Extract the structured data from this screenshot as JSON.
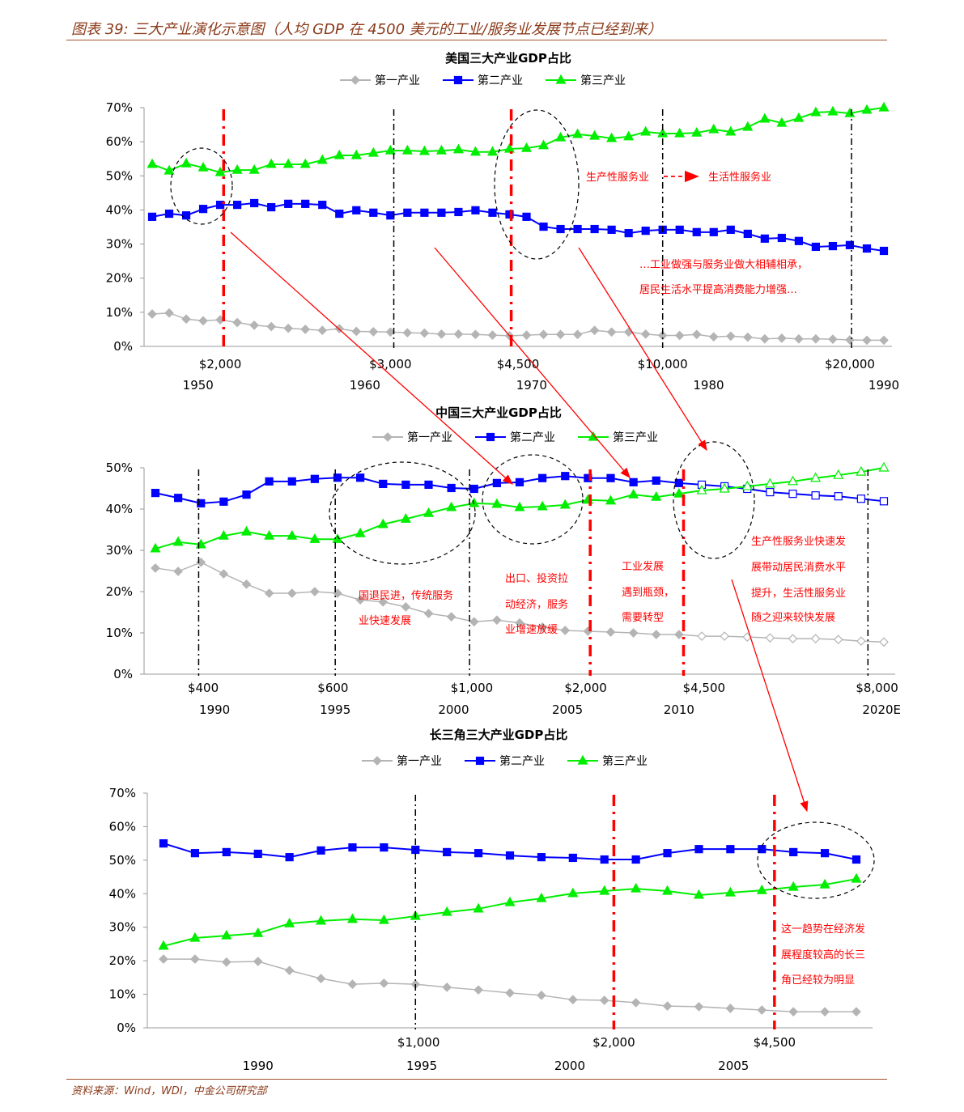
{
  "header": {
    "title": "图表 39: 三大产业演化示意图（人均 GDP 在 4500 美元的工业/服务业发展节点已经到来）"
  },
  "footer": {
    "source": "资料来源：Wind，WDI，中金公司研究部"
  },
  "legend": [
    "第一产业",
    "第二产业",
    "第三产业"
  ],
  "colors": {
    "primary": "#b4b4b4",
    "secondary": "#0000ff",
    "tertiary": "#00ee00",
    "annotation": "#ff0000"
  },
  "chart_data": [
    {
      "type": "line",
      "title": "美国三大产业GDP占比",
      "x_start": 1947,
      "x_end": 1990,
      "ylim": [
        0,
        70
      ],
      "yticks": [
        0,
        10,
        20,
        30,
        40,
        50,
        60,
        70
      ],
      "series": [
        {
          "name": "第一产业",
          "values": [
            9.5,
            9.8,
            8,
            7.5,
            7.8,
            7,
            6.2,
            5.8,
            5.3,
            5,
            4.7,
            5.2,
            4.4,
            4.3,
            4.2,
            4,
            3.9,
            3.6,
            3.6,
            3.5,
            3.3,
            3.1,
            3.3,
            3.5,
            3.5,
            3.5,
            4.7,
            4.2,
            4.2,
            3.6,
            3.2,
            3.2,
            3.5,
            2.8,
            3,
            2.7,
            2.2,
            2.4,
            2.2,
            2.2,
            2.1,
            1.9,
            1.8,
            1.8
          ]
        },
        {
          "name": "第二产业",
          "values": [
            38.0,
            38.9,
            38.4,
            40.3,
            41.5,
            41.5,
            42.0,
            40.8,
            41.8,
            41.8,
            41.5,
            38.9,
            39.9,
            39.2,
            38.4,
            39.2,
            39.2,
            39.2,
            39.4,
            39.9,
            39.2,
            38.7,
            38.0,
            35.1,
            34.4,
            34.4,
            34.4,
            34.2,
            33.2,
            33.9,
            34.2,
            34.2,
            33.5,
            33.5,
            34.2,
            33.0,
            31.6,
            31.8,
            30.9,
            29.2,
            29.4,
            29.7,
            28.7,
            28.0
          ]
        },
        {
          "name": "第三产业",
          "values": [
            53.4,
            51.5,
            53.6,
            52.4,
            51,
            51.7,
            51.7,
            53.4,
            53.4,
            53.4,
            54.6,
            56,
            56,
            56.7,
            57.4,
            57.4,
            57.2,
            57.4,
            57.7,
            57,
            57,
            57.9,
            58.1,
            58.9,
            61.2,
            62.2,
            61.7,
            61,
            61.5,
            62.9,
            62.4,
            62.4,
            62.6,
            63.6,
            62.9,
            64.3,
            66.7,
            65.5,
            66.9,
            68.6,
            68.8,
            68.3,
            69.3,
            70
          ]
        }
      ],
      "gdp_labels": [
        {
          "label": "$2,000",
          "x": 1951
        },
        {
          "label": "$3,000",
          "x": 1961
        },
        {
          "label": "$4,500",
          "x": 1968.5
        },
        {
          "label": "$10,000",
          "x": 1977
        },
        {
          "label": "$20,000",
          "x": 1988
        }
      ],
      "year_labels": [
        {
          "label": "1950",
          "x": 1949.7
        },
        {
          "label": "1960",
          "x": 1959.5
        },
        {
          "label": "1970",
          "x": 1969.3
        },
        {
          "label": "1980",
          "x": 1979.7
        },
        {
          "label": "1990",
          "x": 1990
        }
      ],
      "markers": [
        {
          "x": 1951.2,
          "style": "red"
        },
        {
          "x": 1961.2,
          "style": "black"
        },
        {
          "x": 1968.1,
          "style": "red"
        },
        {
          "x": 1977,
          "style": "black"
        },
        {
          "x": 1988.1,
          "style": "black"
        }
      ],
      "annotations": [
        "生产性服务业",
        "生活性服务业",
        "…工业做强与服务业做大相辅相承，",
        "居民生活水平提高消费能力增强…"
      ]
    },
    {
      "type": "line",
      "title": "中国三大产业GDP占比",
      "x_start": 1988,
      "x_end": 2020,
      "projection_from": 2012,
      "ylim": [
        0,
        50
      ],
      "yticks": [
        0,
        10,
        20,
        30,
        40,
        50
      ],
      "series": [
        {
          "name": "第一产业",
          "values": [
            25.7,
            24.9,
            27.1,
            24.3,
            21.8,
            19.6,
            19.6,
            20,
            19.6,
            18,
            17.5,
            16.3,
            14.7,
            13.9,
            12.7,
            13.1,
            12.4,
            11.4,
            10.6,
            10.4,
            10.2,
            10,
            9.6,
            9.6,
            9.2,
            9.2,
            9,
            8.8,
            8.6,
            8.6,
            8.4,
            8,
            7.8
          ]
        },
        {
          "name": "第二产业",
          "values": [
            43.9,
            42.7,
            41.4,
            41.8,
            43.5,
            46.7,
            46.7,
            47.3,
            47.6,
            47.6,
            46.1,
            45.9,
            45.9,
            45.1,
            44.9,
            46.3,
            46.5,
            47.5,
            48.0,
            47.5,
            47.5,
            46.5,
            46.9,
            46.3,
            45.9,
            45.5,
            44.9,
            44.1,
            43.7,
            43.3,
            43.1,
            42.5,
            41.9
          ]
        },
        {
          "name": "第三产业",
          "values": [
            30.4,
            32,
            31.4,
            33.5,
            34.5,
            33.5,
            33.5,
            32.7,
            32.7,
            34.1,
            36.3,
            37.6,
            39,
            40.4,
            41.4,
            41.2,
            40.4,
            40.6,
            41,
            42.2,
            42,
            43.5,
            42.9,
            43.7,
            44.5,
            44.9,
            45.5,
            46.1,
            46.7,
            47.5,
            48.2,
            49,
            50
          ]
        }
      ],
      "gdp_labels": [
        {
          "label": "$400",
          "x": 1990.1
        },
        {
          "label": "$600",
          "x": 1995.8
        },
        {
          "label": "$1,000",
          "x": 2001.9
        },
        {
          "label": "$2,000",
          "x": 2006.9
        },
        {
          "label": "$4,500",
          "x": 2012.1
        },
        {
          "label": "$8,000",
          "x": 2019.7
        }
      ],
      "year_labels": [
        {
          "label": "1990",
          "x": 1990.6
        },
        {
          "label": "1995",
          "x": 1995.9
        },
        {
          "label": "2000",
          "x": 2001.1
        },
        {
          "label": "2005",
          "x": 2006.1
        },
        {
          "label": "2010",
          "x": 2011
        },
        {
          "label": "2020E",
          "x": 2019.9
        }
      ],
      "markers": [
        {
          "x": 1989.9,
          "style": "black"
        },
        {
          "x": 1995.9,
          "style": "black"
        },
        {
          "x": 2001.8,
          "style": "black"
        },
        {
          "x": 2007.1,
          "style": "red"
        },
        {
          "x": 2011.2,
          "style": "red"
        },
        {
          "x": 2019.3,
          "style": "black"
        }
      ],
      "annotations": [
        "国退民进，传统服务",
        "业快速发展",
        "出口、投资拉",
        "动经济，服务",
        "业增速放缓",
        "工业发展",
        "遇到瓶颈，",
        "需要转型",
        "生产性服务业快速发",
        "展带动居民消费水平",
        "提升，生活性服务业",
        "随之迎来较快发展"
      ]
    },
    {
      "type": "line",
      "title": "长三角三大产业GDP占比",
      "x_start": 1987,
      "x_end": 2009,
      "ylim": [
        0,
        70
      ],
      "yticks": [
        0,
        10,
        20,
        30,
        40,
        50,
        60,
        70
      ],
      "series": [
        {
          "name": "第一产业",
          "values": [
            20.5,
            20.5,
            19.6,
            19.8,
            17.1,
            14.7,
            13,
            13.3,
            13,
            12.1,
            11.3,
            10.4,
            9.7,
            8.4,
            8.2,
            7.5,
            6.5,
            6.3,
            5.8,
            5.3,
            4.8,
            4.8,
            4.8
          ]
        },
        {
          "name": "第二产业",
          "values": [
            55,
            52.1,
            52.4,
            51.9,
            50.9,
            52.9,
            53.8,
            53.8,
            53.1,
            52.4,
            52.1,
            51.4,
            50.9,
            50.7,
            50.2,
            50.2,
            52.1,
            53.3,
            53.3,
            53.3,
            52.4,
            52.1,
            50.2
          ]
        },
        {
          "name": "第三产业",
          "values": [
            24.4,
            26.8,
            27.5,
            28.2,
            31.1,
            31.9,
            32.4,
            32.1,
            33.3,
            34.5,
            35.5,
            37.4,
            38.6,
            40.1,
            40.8,
            41.5,
            40.8,
            39.6,
            40.3,
            41,
            42,
            42.7,
            44.4
          ]
        }
      ],
      "gdp_labels": [
        {
          "label": "$1,000",
          "x": 1995.1
        },
        {
          "label": "$2,000",
          "x": 2001.3
        },
        {
          "label": "$4,500",
          "x": 2006.4
        }
      ],
      "year_labels": [
        {
          "label": "1990",
          "x": 1990
        },
        {
          "label": "1995",
          "x": 1995.2
        },
        {
          "label": "2000",
          "x": 1999.9
        },
        {
          "label": "2005",
          "x": 2005.1
        }
      ],
      "markers": [
        {
          "x": 1995,
          "style": "black"
        },
        {
          "x": 2001.3,
          "style": "red"
        },
        {
          "x": 2006.4,
          "style": "red"
        }
      ],
      "annotations": [
        "这一趋势在经济发",
        "展程度较高的长三",
        "角已经较为明显"
      ]
    }
  ]
}
